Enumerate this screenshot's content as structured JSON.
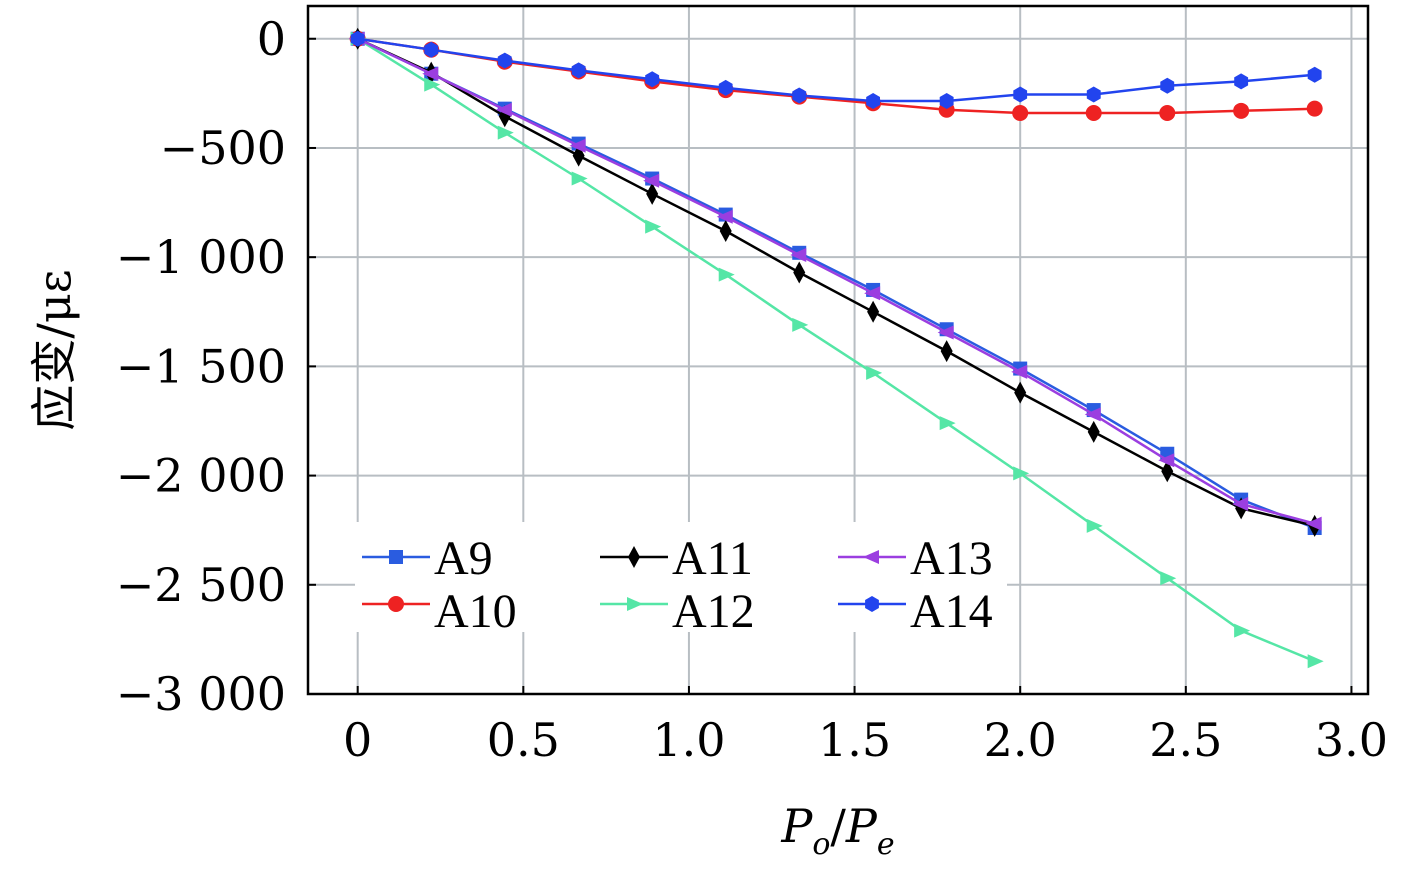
{
  "chart_data": {
    "type": "line",
    "title": "",
    "xlabel": {
      "main": "P",
      "sub1": "o",
      "sep": "/",
      "main2": "P",
      "sub2": "e"
    },
    "ylabel": "应变/με",
    "xlim": [
      -0.15,
      3.05
    ],
    "ylim": [
      -3000,
      150
    ],
    "x_ticks": [
      0,
      0.5,
      1.0,
      1.5,
      2.0,
      2.5,
      3.0
    ],
    "x_tick_labels": [
      "0",
      "0.5",
      "1.0",
      "1.5",
      "2.0",
      "2.5",
      "3.0"
    ],
    "y_ticks": [
      0,
      -500,
      -1000,
      -1500,
      -2000,
      -2500,
      -3000
    ],
    "y_tick_labels": [
      "0",
      "−500",
      "−1 000",
      "−1 500",
      "−2 000",
      "−2 500",
      "−3 000"
    ],
    "grid": true,
    "legend_position": "lower-left",
    "x": [
      0,
      0.222,
      0.444,
      0.667,
      0.889,
      1.111,
      1.333,
      1.556,
      1.778,
      2.0,
      2.222,
      2.444,
      2.667,
      2.889
    ],
    "series": [
      {
        "name": "A9",
        "color": "#2a5ce0",
        "marker": "square",
        "values": [
          0,
          -160,
          -320,
          -480,
          -640,
          -805,
          -980,
          -1150,
          -1330,
          -1510,
          -1700,
          -1900,
          -2110,
          -2240
        ]
      },
      {
        "name": "A10",
        "color": "#ee2222",
        "marker": "circle",
        "values": [
          0,
          -50,
          -105,
          -150,
          -195,
          -235,
          -265,
          -295,
          -325,
          -340,
          -340,
          -340,
          -330,
          -320
        ]
      },
      {
        "name": "A11",
        "color": "#000000",
        "marker": "diamond",
        "values": [
          0,
          -155,
          -355,
          -535,
          -710,
          -880,
          -1070,
          -1250,
          -1430,
          -1620,
          -1800,
          -1980,
          -2150,
          -2230
        ]
      },
      {
        "name": "A12",
        "color": "#55e6a6",
        "marker": "triangle-right",
        "values": [
          0,
          -210,
          -430,
          -640,
          -860,
          -1080,
          -1310,
          -1530,
          -1760,
          -1990,
          -2230,
          -2470,
          -2710,
          -2850
        ]
      },
      {
        "name": "A13",
        "color": "#9b3ee0",
        "marker": "triangle-left",
        "values": [
          0,
          -160,
          -325,
          -490,
          -650,
          -815,
          -990,
          -1165,
          -1345,
          -1525,
          -1720,
          -1930,
          -2130,
          -2220
        ]
      },
      {
        "name": "A14",
        "color": "#2244ee",
        "marker": "hexagon",
        "values": [
          0,
          -50,
          -100,
          -145,
          -185,
          -225,
          -260,
          -285,
          -285,
          -255,
          -255,
          -215,
          -195,
          -165
        ]
      }
    ],
    "legend_layout": [
      [
        "A9",
        "A10"
      ],
      [
        "A11",
        "A12"
      ],
      [
        "A13",
        "A14"
      ]
    ]
  }
}
